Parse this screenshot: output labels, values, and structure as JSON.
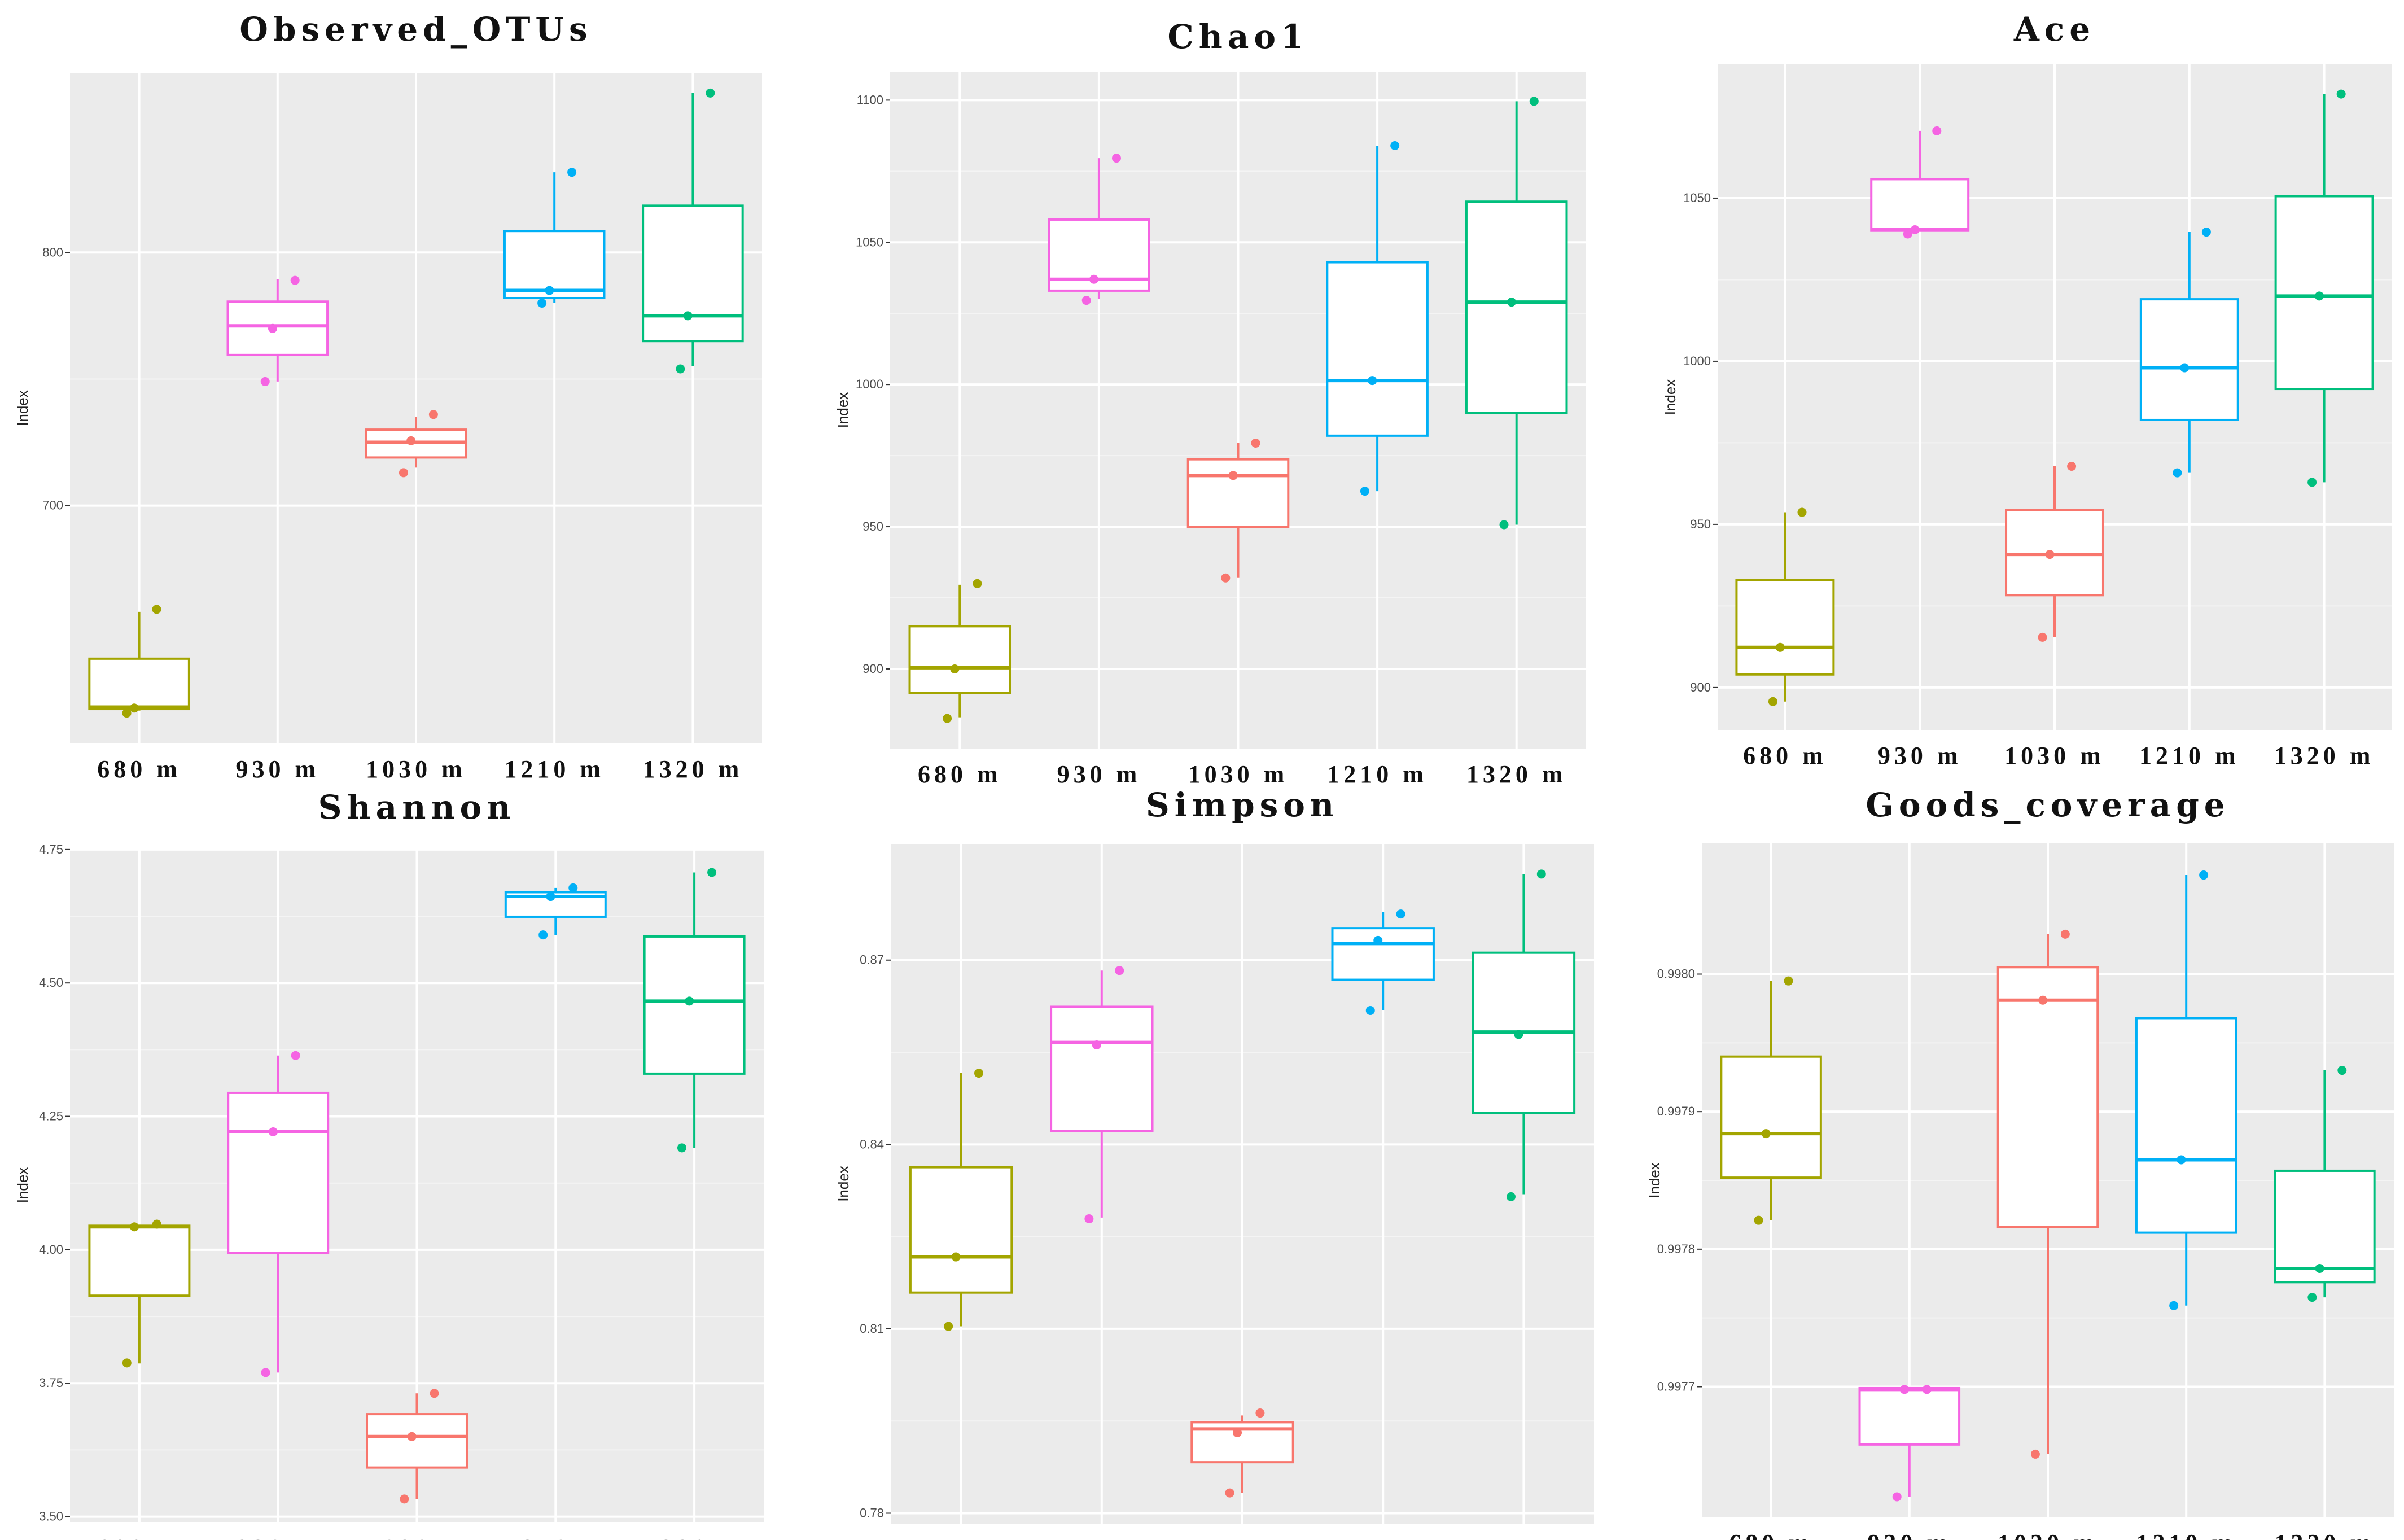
{
  "groups": [
    "680 m",
    "930 m",
    "1030 m",
    "1210 m",
    "1320 m"
  ],
  "colors": [
    "#a3a500",
    "#f564e3",
    "#f8766d",
    "#00b0f6",
    "#00bf7d"
  ],
  "chart_data": [
    {
      "type": "box",
      "title": "Observed_OTUs",
      "ylabel": "Index",
      "ylim": [
        606,
        871
      ],
      "yticks": [
        700,
        800
      ],
      "yticklabels": [
        "700",
        "800"
      ],
      "boxes": [
        {
          "min": 619,
          "q1": 619.6,
          "median": 620.4,
          "q3": 639.5,
          "max": 658,
          "points": [
            659,
            620,
            618
          ]
        },
        {
          "min": 749,
          "q1": 759.5,
          "median": 771,
          "q3": 780.6,
          "max": 789.5,
          "points": [
            789,
            770,
            749
          ]
        },
        {
          "min": 715,
          "q1": 719,
          "median": 725,
          "q3": 730,
          "max": 735,
          "points": [
            736,
            725.6,
            713
          ]
        },
        {
          "min": 780,
          "q1": 782,
          "median": 785,
          "q3": 808.5,
          "max": 831.7,
          "points": [
            831.7,
            785,
            780
          ]
        },
        {
          "min": 755,
          "q1": 765,
          "median": 775,
          "q3": 818.5,
          "max": 863,
          "points": [
            863,
            775,
            754
          ]
        }
      ]
    },
    {
      "type": "box",
      "title": "Chao1",
      "ylabel": "Index",
      "ylim": [
        872,
        1110
      ],
      "yticks": [
        900,
        950,
        1000,
        1050,
        1100
      ],
      "yticklabels": [
        "900",
        "950",
        "1000",
        "1050",
        "1100"
      ],
      "boxes": [
        {
          "min": 883,
          "q1": 891.6,
          "median": 900.4,
          "q3": 915,
          "max": 929.6,
          "points": [
            930,
            900,
            882.6
          ]
        },
        {
          "min": 1030,
          "q1": 1033,
          "median": 1037,
          "q3": 1058,
          "max": 1079.6,
          "points": [
            1079.6,
            1037,
            1029.6
          ]
        },
        {
          "min": 932,
          "q1": 950,
          "median": 968,
          "q3": 973.7,
          "max": 979.4,
          "points": [
            979.4,
            968,
            932
          ]
        },
        {
          "min": 962.5,
          "q1": 982,
          "median": 1001.4,
          "q3": 1043,
          "max": 1084,
          "points": [
            1084,
            1001.4,
            962.5
          ]
        },
        {
          "min": 950.7,
          "q1": 990,
          "median": 1029,
          "q3": 1064.3,
          "max": 1099.6,
          "points": [
            1099.6,
            1029,
            950.7
          ]
        }
      ]
    },
    {
      "type": "box",
      "title": "Ace",
      "ylabel": "Index",
      "ylim": [
        887,
        1091
      ],
      "yticks": [
        900,
        950,
        1000,
        1050
      ],
      "yticklabels": [
        "900",
        "950",
        "1000",
        "1050"
      ],
      "boxes": [
        {
          "min": 895.7,
          "q1": 904,
          "median": 912.3,
          "q3": 933,
          "max": 953.7,
          "points": [
            953.7,
            912.3,
            895.7
          ]
        },
        {
          "min": 1040,
          "q1": 1040,
          "median": 1040.3,
          "q3": 1055.8,
          "max": 1070.6,
          "points": [
            1070.6,
            1040.3,
            1039
          ]
        },
        {
          "min": 915.4,
          "q1": 928.3,
          "median": 940.8,
          "q3": 954.4,
          "max": 967.8,
          "points": [
            967.8,
            940.8,
            915.4
          ]
        },
        {
          "min": 965.8,
          "q1": 982,
          "median": 998,
          "q3": 1019,
          "max": 1039.6,
          "points": [
            1039.6,
            998,
            965.8
          ]
        },
        {
          "min": 962.9,
          "q1": 991.5,
          "median": 1020,
          "q3": 1050.6,
          "max": 1081.9,
          "points": [
            1081.9,
            1020,
            962.9
          ]
        }
      ]
    },
    {
      "type": "box",
      "title": "Shannon",
      "ylabel": "Index",
      "ylim": [
        3.489,
        4.753
      ],
      "yticks": [
        3.5,
        3.75,
        4.0,
        4.25,
        4.5,
        4.75
      ],
      "yticklabels": [
        "3.50",
        "3.75",
        "4.00",
        "4.25",
        "4.50",
        "4.75"
      ],
      "boxes": [
        {
          "min": 3.787,
          "q1": 3.914,
          "median": 4.043,
          "q3": 4.045,
          "max": 4.047,
          "points": [
            4.048,
            4.043,
            3.788
          ]
        },
        {
          "min": 3.77,
          "q1": 3.994,
          "median": 4.222,
          "q3": 4.294,
          "max": 4.364,
          "points": [
            4.364,
            4.221,
            3.77
          ]
        },
        {
          "min": 3.533,
          "q1": 3.592,
          "median": 3.65,
          "q3": 3.692,
          "max": 3.731,
          "points": [
            3.731,
            3.65,
            3.533
          ]
        },
        {
          "min": 4.59,
          "q1": 4.624,
          "median": 4.662,
          "q3": 4.67,
          "max": 4.678,
          "points": [
            4.678,
            4.662,
            4.59
          ]
        },
        {
          "min": 4.191,
          "q1": 4.33,
          "median": 4.466,
          "q3": 4.587,
          "max": 4.707,
          "points": [
            4.707,
            4.466,
            4.191
          ]
        }
      ]
    },
    {
      "type": "box",
      "title": "Simpson",
      "ylabel": "Index",
      "ylim": [
        0.7783,
        0.8889
      ],
      "yticks": [
        0.78,
        0.81,
        0.84,
        0.87
      ],
      "yticklabels": [
        "0.78",
        "0.81",
        "0.84",
        "0.87"
      ],
      "boxes": [
        {
          "min": 0.8104,
          "q1": 0.8159,
          "median": 0.8217,
          "q3": 0.8363,
          "max": 0.8516,
          "points": [
            0.8516,
            0.8217,
            0.8104
          ]
        },
        {
          "min": 0.8281,
          "q1": 0.8422,
          "median": 0.8566,
          "q3": 0.8624,
          "max": 0.8683,
          "points": [
            0.8683,
            0.8562,
            0.8279
          ]
        },
        {
          "min": 0.7833,
          "q1": 0.7883,
          "median": 0.7937,
          "q3": 0.7948,
          "max": 0.7959,
          "points": [
            0.7963,
            0.7931,
            0.7833
          ]
        },
        {
          "min": 0.8618,
          "q1": 0.8668,
          "median": 0.8727,
          "q3": 0.8752,
          "max": 0.8778,
          "points": [
            0.8775,
            0.8732,
            0.8618
          ]
        },
        {
          "min": 0.8319,
          "q1": 0.8451,
          "median": 0.8583,
          "q3": 0.8712,
          "max": 0.884,
          "points": [
            0.884,
            0.8579,
            0.8315
          ]
        }
      ]
    },
    {
      "type": "box",
      "title": "Goods_coverage",
      "ylabel": "Index",
      "ylim": [
        0.997605,
        0.998095
      ],
      "yticks": [
        0.9977,
        0.9978,
        0.9979,
        0.998
      ],
      "yticklabels": [
        "0.9977",
        "0.9978",
        "0.9979",
        "0.9980"
      ],
      "boxes": [
        {
          "min": 0.997821,
          "q1": 0.997852,
          "median": 0.997884,
          "q3": 0.99794,
          "max": 0.997995,
          "points": [
            0.997995,
            0.997884,
            0.997821
          ]
        },
        {
          "min": 0.99762,
          "q1": 0.997658,
          "median": 0.997698,
          "q3": 0.997699,
          "max": 0.997699,
          "points": [
            0.997698,
            0.997698,
            0.99762
          ]
        },
        {
          "min": 0.997651,
          "q1": 0.997816,
          "median": 0.997981,
          "q3": 0.998005,
          "max": 0.998029,
          "points": [
            0.998029,
            0.997981,
            0.997651
          ]
        },
        {
          "min": 0.997759,
          "q1": 0.997812,
          "median": 0.997865,
          "q3": 0.997968,
          "max": 0.998072,
          "points": [
            0.998072,
            0.997865,
            0.997759
          ]
        },
        {
          "min": 0.997765,
          "q1": 0.997776,
          "median": 0.997786,
          "q3": 0.997857,
          "max": 0.99793,
          "points": [
            0.99793,
            0.997786,
            0.997765
          ]
        }
      ]
    }
  ]
}
